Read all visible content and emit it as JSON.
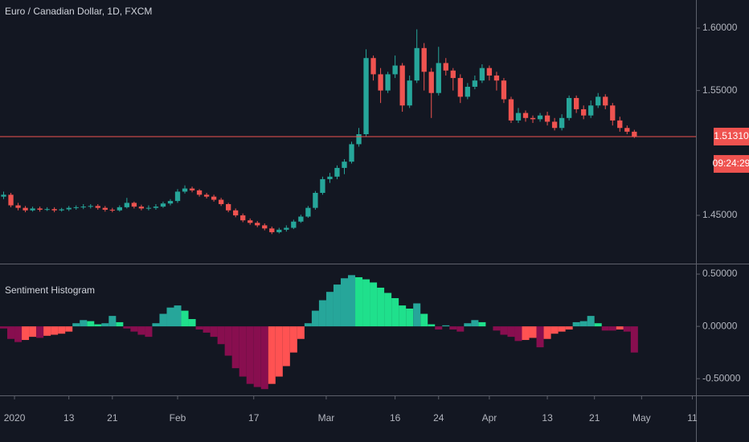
{
  "chart_data": [
    {
      "type": "candlestick",
      "title": "Euro / Canadian Dollar, 1D, FXCM",
      "up_color": "#26a69a",
      "down_color": "#ef5350",
      "xlim": [
        -0.5,
        95.5
      ],
      "xticks": [
        {
          "value": 1.5,
          "label": "2020"
        },
        {
          "value": 9,
          "label": "13"
        },
        {
          "value": 15,
          "label": "21"
        },
        {
          "value": 24,
          "label": "Feb"
        },
        {
          "value": 34.5,
          "label": "17"
        },
        {
          "value": 44.5,
          "label": "Mar"
        },
        {
          "value": 54,
          "label": "16"
        },
        {
          "value": 60,
          "label": "24"
        },
        {
          "value": 67,
          "label": "Apr"
        },
        {
          "value": 75,
          "label": "13"
        },
        {
          "value": 81.5,
          "label": "21"
        },
        {
          "value": 88,
          "label": "May"
        },
        {
          "value": 95,
          "label": "11"
        }
      ],
      "ylim": [
        1.412,
        1.6225
      ],
      "yticks": [
        {
          "value": 1.45,
          "label": "1.45000"
        },
        {
          "value": 1.55,
          "label": "1.55000"
        },
        {
          "value": 1.6,
          "label": "1.60000"
        }
      ],
      "last_price": {
        "value": 1.5131,
        "label": "1.51310"
      },
      "countdown": "09:24:29",
      "open": [
        1.465,
        1.4665,
        1.458,
        1.456,
        1.454,
        1.4555,
        1.4545,
        1.455,
        1.454,
        1.4548,
        1.456,
        1.4565,
        1.457,
        1.4575,
        1.456,
        1.4545,
        1.454,
        1.4565,
        1.46,
        1.457,
        1.4555,
        1.456,
        1.457,
        1.4595,
        1.4615,
        1.469,
        1.4715,
        1.47,
        1.4665,
        1.465,
        1.4625,
        1.459,
        1.454,
        1.45,
        1.446,
        1.444,
        1.442,
        1.4395,
        1.4365,
        1.4385,
        1.44,
        1.445,
        1.449,
        1.456,
        1.468,
        1.479,
        1.481,
        1.488,
        1.493,
        1.507,
        1.515,
        1.576,
        1.563,
        1.55,
        1.563,
        1.57,
        1.538,
        1.558,
        1.584,
        1.565,
        1.548,
        1.572,
        1.566,
        1.56,
        1.545,
        1.553,
        1.558,
        1.568,
        1.562,
        1.558,
        1.543,
        1.526,
        1.532,
        1.528,
        1.527,
        1.53,
        1.525,
        1.52,
        1.528,
        1.544,
        1.535,
        1.53,
        1.538,
        1.545,
        1.538,
        1.526,
        1.52,
        1.517
      ],
      "high": [
        1.469,
        1.468,
        1.46,
        1.4575,
        1.457,
        1.457,
        1.4565,
        1.4565,
        1.456,
        1.4575,
        1.458,
        1.459,
        1.459,
        1.459,
        1.4575,
        1.456,
        1.458,
        1.464,
        1.461,
        1.4585,
        1.458,
        1.459,
        1.461,
        1.463,
        1.471,
        1.474,
        1.473,
        1.471,
        1.468,
        1.4665,
        1.464,
        1.46,
        1.4555,
        1.4515,
        1.4475,
        1.4455,
        1.4435,
        1.441,
        1.44,
        1.442,
        1.4465,
        1.4505,
        1.4575,
        1.4695,
        1.481,
        1.484,
        1.49,
        1.495,
        1.509,
        1.52,
        1.583,
        1.578,
        1.568,
        1.565,
        1.578,
        1.572,
        1.562,
        1.599,
        1.588,
        1.568,
        1.585,
        1.576,
        1.568,
        1.563,
        1.556,
        1.562,
        1.571,
        1.57,
        1.565,
        1.56,
        1.545,
        1.536,
        1.534,
        1.53,
        1.532,
        1.533,
        1.528,
        1.531,
        1.546,
        1.546,
        1.538,
        1.542,
        1.548,
        1.547,
        1.54,
        1.529,
        1.522,
        1.5185
      ],
      "low": [
        1.463,
        1.4565,
        1.454,
        1.4525,
        1.453,
        1.453,
        1.4535,
        1.4525,
        1.453,
        1.4535,
        1.4545,
        1.455,
        1.4555,
        1.4545,
        1.453,
        1.4525,
        1.453,
        1.4555,
        1.4555,
        1.454,
        1.454,
        1.4545,
        1.456,
        1.458,
        1.46,
        1.4675,
        1.4685,
        1.465,
        1.4635,
        1.461,
        1.4575,
        1.4525,
        1.4485,
        1.4445,
        1.4425,
        1.4405,
        1.438,
        1.435,
        1.4355,
        1.437,
        1.439,
        1.444,
        1.448,
        1.4545,
        1.4665,
        1.476,
        1.479,
        1.483,
        1.4915,
        1.505,
        1.513,
        1.558,
        1.54,
        1.548,
        1.56,
        1.533,
        1.536,
        1.556,
        1.55,
        1.528,
        1.546,
        1.562,
        1.55,
        1.54,
        1.543,
        1.551,
        1.556,
        1.558,
        1.55,
        1.54,
        1.524,
        1.524,
        1.525,
        1.524,
        1.525,
        1.522,
        1.518,
        1.518,
        1.526,
        1.532,
        1.527,
        1.528,
        1.536,
        1.535,
        1.522,
        1.517,
        1.515,
        1.512
      ],
      "close": [
        1.4665,
        1.458,
        1.456,
        1.454,
        1.4555,
        1.4545,
        1.455,
        1.454,
        1.4548,
        1.456,
        1.4565,
        1.457,
        1.4575,
        1.456,
        1.4545,
        1.454,
        1.4565,
        1.46,
        1.457,
        1.4555,
        1.456,
        1.457,
        1.4595,
        1.4615,
        1.469,
        1.4715,
        1.47,
        1.4665,
        1.465,
        1.4625,
        1.459,
        1.454,
        1.45,
        1.446,
        1.444,
        1.442,
        1.4395,
        1.4365,
        1.4385,
        1.44,
        1.445,
        1.449,
        1.456,
        1.468,
        1.479,
        1.481,
        1.488,
        1.493,
        1.507,
        1.515,
        1.576,
        1.563,
        1.55,
        1.563,
        1.57,
        1.538,
        1.558,
        1.584,
        1.565,
        1.548,
        1.572,
        1.566,
        1.56,
        1.545,
        1.553,
        1.558,
        1.568,
        1.562,
        1.558,
        1.543,
        1.526,
        1.532,
        1.528,
        1.527,
        1.53,
        1.525,
        1.52,
        1.528,
        1.544,
        1.535,
        1.53,
        1.538,
        1.545,
        1.538,
        1.526,
        1.52,
        1.517,
        1.5131
      ]
    },
    {
      "type": "bar",
      "title": "Sentiment Histogram",
      "color_positive_rising": "#26a69a",
      "color_positive_falling": "#1fe08c",
      "color_negative_falling": "#880e4f",
      "color_negative_rising": "#ff5252",
      "ylim": [
        -0.66,
        0.585
      ],
      "yticks": [
        {
          "value": -0.5,
          "label": "-0.50000"
        },
        {
          "value": 0,
          "label": "0.00000"
        },
        {
          "value": 0.5,
          "label": "0.50000"
        }
      ],
      "values": [
        -0.02,
        -0.12,
        -0.15,
        -0.13,
        -0.1,
        -0.11,
        -0.09,
        -0.08,
        -0.07,
        -0.05,
        0.03,
        0.06,
        0.05,
        0.02,
        0.03,
        0.1,
        0.04,
        -0.02,
        -0.05,
        -0.08,
        -0.1,
        0.03,
        0.12,
        0.18,
        0.2,
        0.15,
        0.07,
        -0.03,
        -0.06,
        -0.1,
        -0.17,
        -0.28,
        -0.4,
        -0.48,
        -0.55,
        -0.58,
        -0.6,
        -0.55,
        -0.48,
        -0.38,
        -0.25,
        -0.12,
        0.03,
        0.15,
        0.25,
        0.33,
        0.4,
        0.46,
        0.49,
        0.47,
        0.45,
        0.42,
        0.37,
        0.32,
        0.27,
        0.2,
        0.17,
        0.22,
        0.12,
        0.02,
        -0.03,
        0.01,
        -0.03,
        -0.05,
        0.03,
        0.06,
        0.04,
        0.0,
        -0.04,
        -0.08,
        -0.1,
        -0.14,
        -0.13,
        -0.11,
        -0.2,
        -0.12,
        -0.07,
        -0.05,
        -0.03,
        0.04,
        0.05,
        0.1,
        0.03,
        -0.04,
        -0.04,
        -0.03,
        -0.05,
        -0.25
      ]
    }
  ]
}
